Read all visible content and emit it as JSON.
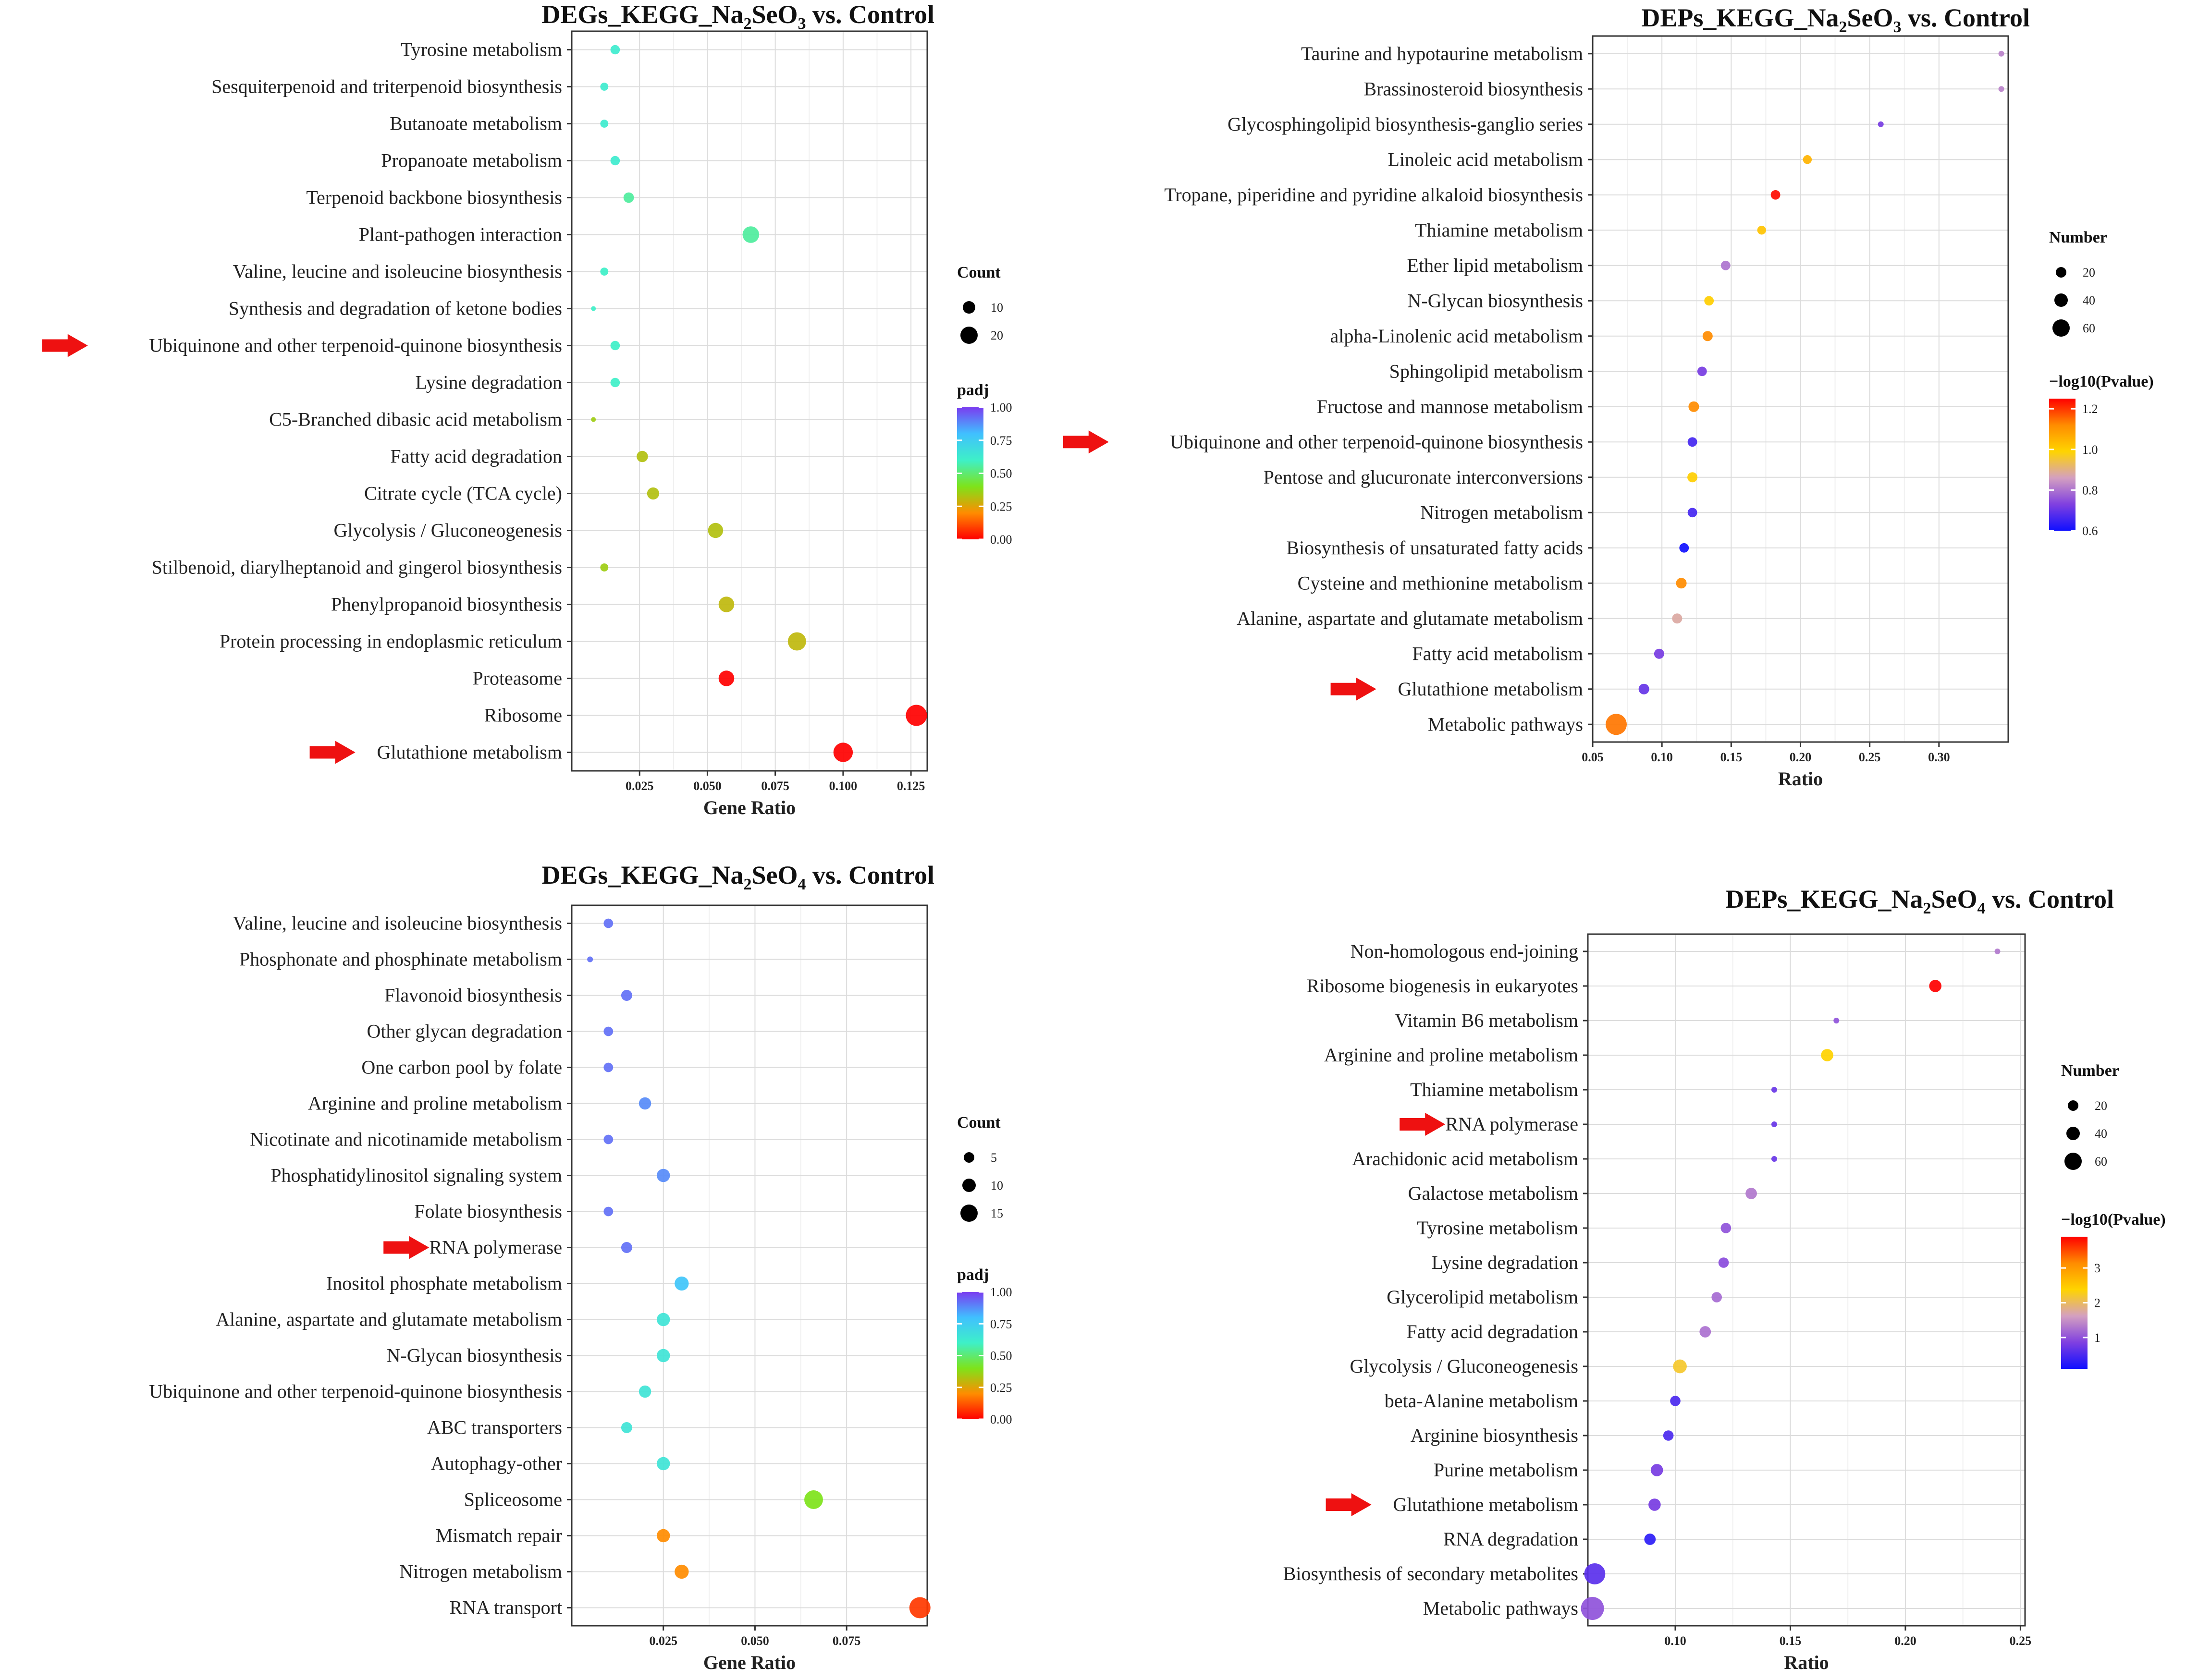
{
  "chart_data": [
    {
      "type": "scatter",
      "title_parts": [
        "DEGs_KEGG_Na",
        "2",
        "SeO",
        "3",
        " vs. Control"
      ],
      "xlabel": "Gene Ratio",
      "xlim": [
        0.0,
        0.131
      ],
      "xticks": [
        0.025,
        0.05,
        0.075,
        0.1,
        0.125
      ],
      "xtick_labels": [
        "0.025",
        "0.050",
        "0.075",
        "0.100",
        "0.125"
      ],
      "categories": [
        "Tyrosine metabolism",
        "Sesquiterpenoid and triterpenoid biosynthesis",
        "Butanoate metabolism",
        "Propanoate metabolism",
        "Terpenoid backbone biosynthesis",
        "Plant-pathogen interaction",
        "Valine, leucine and isoleucine biosynthesis",
        "Synthesis and degradation of ketone bodies",
        "Ubiquinone and other terpenoid-quinone biosynthesis",
        "Lysine degradation",
        "C5-Branched dibasic acid metabolism",
        "Fatty acid degradation",
        "Citrate cycle (TCA cycle)",
        "Glycolysis / Gluconeogenesis",
        "Stilbenoid, diarylheptanoid and gingerol biosynthesis",
        "Phenylpropanoid biosynthesis",
        "Protein processing in endoplasmic reticulum",
        "Proteasome",
        "Ribosome",
        "Glutathione metabolism"
      ],
      "x": [
        0.016,
        0.012,
        0.012,
        0.016,
        0.021,
        0.066,
        0.012,
        0.008,
        0.016,
        0.016,
        0.008,
        0.026,
        0.03,
        0.053,
        0.012,
        0.057,
        0.083,
        0.057,
        0.127,
        0.1
      ],
      "size": [
        4,
        3,
        3,
        4,
        5,
        15,
        3,
        2,
        4,
        4,
        2,
        6,
        7,
        12,
        3,
        13,
        19,
        13,
        27,
        22
      ],
      "color_value": [
        0.62,
        0.62,
        0.62,
        0.62,
        0.55,
        0.55,
        0.6,
        0.6,
        0.6,
        0.6,
        0.35,
        0.32,
        0.32,
        0.32,
        0.35,
        0.3,
        0.3,
        0.0,
        0.0,
        0.0
      ],
      "arrows": [
        "Ubiquinone and other terpenoid-quinone biosynthesis",
        "Glutathione metabolism"
      ],
      "legend_size": {
        "title": "Count",
        "values": [
          10,
          20
        ]
      },
      "legend_color": {
        "title": "padj",
        "ticks": [
          "1.00",
          "0.75",
          "0.50",
          "0.25",
          "0.00"
        ],
        "colors": [
          "#ff0000",
          "#ff8c00",
          "#7ee31a",
          "#3ef0c8",
          "#40c0ff",
          "#7a3cf0"
        ]
      }
    },
    {
      "type": "scatter",
      "title_parts": [
        "DEPs_KEGG_Na",
        "2",
        "SeO",
        "3",
        " vs. Control"
      ],
      "xlabel": "Ratio",
      "xlim": [
        0.05,
        0.35
      ],
      "xticks": [
        0.05,
        0.1,
        0.15,
        0.2,
        0.25,
        0.3
      ],
      "xtick_labels": [
        "0.05",
        "0.10",
        "0.15",
        "0.20",
        "0.25",
        "0.30"
      ],
      "categories": [
        "Taurine and hypotaurine metabolism",
        "Brassinosteroid biosynthesis",
        "Glycosphingolipid biosynthesis-ganglio series",
        "Linoleic acid metabolism",
        "Tropane, piperidine and pyridine alkaloid biosynthesis",
        "Thiamine metabolism",
        "Ether lipid metabolism",
        "N-Glycan biosynthesis",
        "alpha-Linolenic acid metabolism",
        "Sphingolipid metabolism",
        "Fructose and mannose metabolism",
        "Ubiquinone and other terpenoid-quinone biosynthesis",
        "Pentose and glucuronate interconversions",
        "Nitrogen metabolism",
        "Biosynthesis of unsaturated fatty acids",
        "Cysteine and methionine metabolism",
        "Alanine, aspartate and glutamate metabolism",
        "Fatty acid metabolism",
        "Glutathione metabolism",
        "Metabolic pathways"
      ],
      "x": [
        0.345,
        0.345,
        0.258,
        0.205,
        0.182,
        0.172,
        0.146,
        0.134,
        0.133,
        0.129,
        0.123,
        0.122,
        0.122,
        0.122,
        0.116,
        0.114,
        0.111,
        0.098,
        0.087,
        0.067
      ],
      "size": [
        2,
        2,
        2,
        4,
        5,
        4,
        5,
        5,
        6,
        5,
        7,
        5,
        6,
        5,
        5,
        7,
        6,
        6,
        7,
        52
      ],
      "color_value": [
        0.82,
        0.82,
        0.72,
        1.05,
        1.24,
        1.02,
        0.8,
        1.0,
        1.12,
        0.72,
        1.12,
        0.66,
        1.0,
        0.66,
        0.6,
        1.12,
        0.88,
        0.72,
        0.7,
        1.14
      ],
      "arrows": [
        "Ubiquinone and other terpenoid-quinone biosynthesis",
        "Glutathione metabolism"
      ],
      "legend_size": {
        "title": "Number",
        "values": [
          20,
          40,
          60
        ]
      },
      "legend_color": {
        "title": "−log10(Pvalue)",
        "ticks": [
          "1.2",
          "1.0",
          "0.8",
          "0.6"
        ],
        "colors": [
          "#1010ff",
          "#8040e0",
          "#d4a0c0",
          "#ffd400",
          "#ff8c00",
          "#ff0000"
        ]
      }
    },
    {
      "type": "scatter",
      "title_parts": [
        "DEGs_KEGG_Na",
        "2",
        "SeO",
        "4",
        " vs. Control"
      ],
      "xlabel": "Gene Ratio",
      "xlim": [
        0.0,
        0.097
      ],
      "xticks": [
        0.025,
        0.05,
        0.075
      ],
      "xtick_labels": [
        "0.025",
        "0.050",
        "0.075"
      ],
      "categories": [
        "Valine, leucine and isoleucine biosynthesis",
        "Phosphonate and phosphinate metabolism",
        "Flavonoid biosynthesis",
        "Other glycan degradation",
        "One carbon pool by folate",
        "Arginine and proline metabolism",
        "Nicotinate and nicotinamide metabolism",
        "Phosphatidylinositol signaling system",
        "Folate biosynthesis",
        "RNA polymerase",
        "Inositol phosphate metabolism",
        "Alanine, aspartate and glutamate metabolism",
        "N-Glycan biosynthesis",
        "Ubiquinone and other terpenoid-quinone biosynthesis",
        "ABC transporters",
        "Autophagy-other",
        "Spliceosome",
        "Mismatch repair",
        "Nitrogen metabolism",
        "RNA transport"
      ],
      "x": [
        0.01,
        0.005,
        0.015,
        0.01,
        0.01,
        0.02,
        0.01,
        0.025,
        0.01,
        0.015,
        0.03,
        0.025,
        0.025,
        0.02,
        0.015,
        0.025,
        0.066,
        0.025,
        0.03,
        0.095
      ],
      "size": [
        2,
        1,
        3,
        2,
        2,
        4,
        2,
        5,
        2,
        3,
        6,
        5,
        5,
        4,
        3,
        5,
        13,
        5,
        6,
        18
      ],
      "color_value": [
        0.92,
        0.92,
        0.92,
        0.92,
        0.92,
        0.88,
        0.92,
        0.88,
        0.92,
        0.92,
        0.78,
        0.65,
        0.65,
        0.65,
        0.65,
        0.65,
        0.4,
        0.2,
        0.2,
        0.08
      ],
      "arrows": [
        "RNA polymerase"
      ],
      "legend_size": {
        "title": "Count",
        "values": [
          5,
          10,
          15
        ]
      },
      "legend_color": {
        "title": "padj",
        "ticks": [
          "1.00",
          "0.75",
          "0.50",
          "0.25",
          "0.00"
        ],
        "colors": [
          "#ff0000",
          "#ff8c00",
          "#7ee31a",
          "#3ef0c8",
          "#40c0ff",
          "#7a3cf0"
        ]
      }
    },
    {
      "type": "scatter",
      "title_parts": [
        "DEPs_KEGG_Na",
        "2",
        "SeO",
        "4",
        " vs. Control"
      ],
      "xlabel": "Ratio",
      "xlim": [
        0.062,
        0.252
      ],
      "xticks": [
        0.1,
        0.15,
        0.2,
        0.25
      ],
      "xtick_labels": [
        "0.10",
        "0.15",
        "0.20",
        "0.25"
      ],
      "categories": [
        "Non-homologous end-joining",
        "Ribosome biogenesis in eukaryotes",
        "Vitamin B6 metabolism",
        "Arginine and proline metabolism",
        "Thiamine metabolism",
        "RNA polymerase",
        "Arachidonic acid metabolism",
        "Galactose metabolism",
        "Tyrosine metabolism",
        "Lysine degradation",
        "Glycerolipid metabolism",
        "Fatty acid degradation",
        "Glycolysis / Gluconeogenesis",
        "beta-Alanine metabolism",
        "Arginine biosynthesis",
        "Purine metabolism",
        "Glutathione metabolism",
        "RNA degradation",
        "Biosynthesis of secondary metabolites",
        "Metabolic pathways"
      ],
      "x": [
        0.24,
        0.213,
        0.17,
        0.166,
        0.143,
        0.143,
        0.143,
        0.133,
        0.122,
        0.121,
        0.118,
        0.113,
        0.102,
        0.1,
        0.097,
        0.092,
        0.091,
        0.089,
        0.065,
        0.064
      ],
      "size": [
        2,
        6,
        2,
        6,
        2,
        2,
        2,
        5,
        4,
        4,
        4,
        5,
        8,
        4,
        4,
        6,
        6,
        5,
        24,
        30
      ],
      "color_value": [
        1.3,
        3.9,
        1.0,
        2.4,
        0.7,
        0.7,
        0.7,
        1.3,
        1.0,
        0.95,
        1.2,
        1.25,
        2.2,
        0.5,
        0.5,
        0.8,
        0.8,
        0.3,
        0.6,
        1.0
      ],
      "arrows": [
        "RNA polymerase",
        "Glutathione metabolism"
      ],
      "legend_size": {
        "title": "Number",
        "values": [
          20,
          40,
          60
        ]
      },
      "legend_color": {
        "title": "−log10(Pvalue)",
        "ticks": [
          "3",
          "2",
          "1"
        ],
        "colors": [
          "#1010ff",
          "#8040e0",
          "#d4a0c0",
          "#ffd400",
          "#ff8c00",
          "#ff0000"
        ]
      }
    }
  ]
}
